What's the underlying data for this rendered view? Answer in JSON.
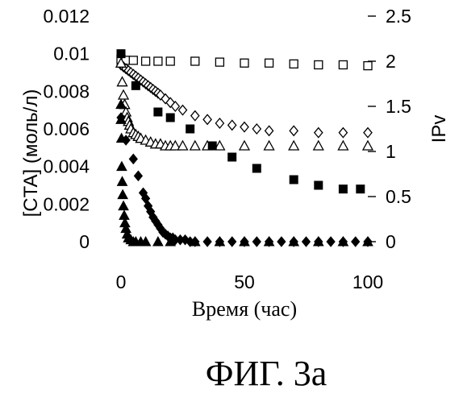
{
  "figure_caption": "ФИГ. 3а",
  "chart_data": {
    "type": "scatter",
    "xlabel": "Время (час)",
    "ylabel": "[CTA] (моль/л)",
    "y2label": "IPv",
    "xlim": [
      0,
      100
    ],
    "ylim": [
      0,
      0.012
    ],
    "y2lim": [
      0,
      2.5
    ],
    "x_ticks": [
      "0",
      "50",
      "100"
    ],
    "y_ticks": [
      "0",
      "0.002",
      "0.004",
      "0.006",
      "0.008",
      "0.01",
      "0.012"
    ],
    "y2_ticks": [
      "0",
      "0.5",
      "1",
      "1.5",
      "2",
      "2.5"
    ],
    "grid": false,
    "series": [
      {
        "marker": "open-square",
        "axis": "right",
        "points": [
          [
            0,
            2.02
          ],
          [
            2,
            2.01
          ],
          [
            5,
            2.01
          ],
          [
            10,
            2.0
          ],
          [
            15,
            2.0
          ],
          [
            20,
            2.0
          ],
          [
            30,
            2.0
          ],
          [
            40,
            1.99
          ],
          [
            50,
            1.98
          ],
          [
            60,
            1.98
          ],
          [
            70,
            1.97
          ],
          [
            80,
            1.96
          ],
          [
            90,
            1.96
          ],
          [
            100,
            1.95
          ]
        ]
      },
      {
        "marker": "open-diamond",
        "axis": "left",
        "points": [
          [
            0,
            0.0094
          ],
          [
            1,
            0.0093
          ],
          [
            2,
            0.0092
          ],
          [
            3,
            0.0091
          ],
          [
            4,
            0.009
          ],
          [
            5,
            0.0089
          ],
          [
            6,
            0.0088
          ],
          [
            7,
            0.0087
          ],
          [
            8,
            0.0086
          ],
          [
            9,
            0.0085
          ],
          [
            10,
            0.0084
          ],
          [
            11,
            0.0083
          ],
          [
            12,
            0.0082
          ],
          [
            13,
            0.0081
          ],
          [
            14,
            0.008
          ],
          [
            15,
            0.0079
          ],
          [
            16,
            0.0078
          ],
          [
            18,
            0.0076
          ],
          [
            20,
            0.0074
          ],
          [
            22,
            0.0072
          ],
          [
            25,
            0.007
          ],
          [
            30,
            0.0067
          ],
          [
            35,
            0.0065
          ],
          [
            40,
            0.0063
          ],
          [
            45,
            0.0062
          ],
          [
            50,
            0.0061
          ],
          [
            55,
            0.006
          ],
          [
            60,
            0.0059
          ],
          [
            70,
            0.0059
          ],
          [
            80,
            0.0058
          ],
          [
            90,
            0.0058
          ],
          [
            100,
            0.0058
          ]
        ]
      },
      {
        "marker": "open-triangle",
        "axis": "left",
        "points": [
          [
            0,
            0.0095
          ],
          [
            0.5,
            0.0085
          ],
          [
            1,
            0.0078
          ],
          [
            1.5,
            0.0073
          ],
          [
            2,
            0.0069
          ],
          [
            2.5,
            0.0066
          ],
          [
            3,
            0.0064
          ],
          [
            3.5,
            0.0062
          ],
          [
            4,
            0.006
          ],
          [
            5,
            0.0058
          ],
          [
            6,
            0.0057
          ],
          [
            7,
            0.0056
          ],
          [
            8,
            0.0055
          ],
          [
            10,
            0.0054
          ],
          [
            12,
            0.0053
          ],
          [
            14,
            0.0052
          ],
          [
            16,
            0.0052
          ],
          [
            18,
            0.0051
          ],
          [
            20,
            0.0051
          ],
          [
            22,
            0.0051
          ],
          [
            25,
            0.0051
          ],
          [
            30,
            0.0051
          ],
          [
            35,
            0.0051
          ],
          [
            40,
            0.0051
          ],
          [
            50,
            0.0051
          ],
          [
            60,
            0.0051
          ],
          [
            70,
            0.0051
          ],
          [
            80,
            0.0051
          ],
          [
            90,
            0.0051
          ],
          [
            100,
            0.0051
          ]
        ]
      },
      {
        "marker": "filled-square",
        "axis": "left",
        "points": [
          [
            0,
            0.01
          ],
          [
            6,
            0.0083
          ],
          [
            15,
            0.0069
          ],
          [
            20,
            0.0066
          ],
          [
            28,
            0.006
          ],
          [
            37,
            0.0051
          ],
          [
            45,
            0.0045
          ],
          [
            55,
            0.0039
          ],
          [
            70,
            0.0033
          ],
          [
            80,
            0.003
          ],
          [
            90,
            0.0028
          ],
          [
            97,
            0.0028
          ]
        ]
      },
      {
        "marker": "filled-diamond",
        "axis": "left",
        "points": [
          [
            0,
            0.0066
          ],
          [
            2,
            0.0054
          ],
          [
            5,
            0.0044
          ],
          [
            7,
            0.0035
          ],
          [
            9,
            0.0026
          ],
          [
            10,
            0.0023
          ],
          [
            11,
            0.0019
          ],
          [
            12,
            0.0016
          ],
          [
            13,
            0.0013
          ],
          [
            14,
            0.0011
          ],
          [
            15,
            0.0009
          ],
          [
            16,
            0.0007
          ],
          [
            17,
            0.0005
          ],
          [
            18,
            0.0004
          ],
          [
            19,
            0.0003
          ],
          [
            20,
            0.0002
          ],
          [
            21,
            0.0002
          ],
          [
            22,
            0.0001
          ],
          [
            24,
            0.0001
          ],
          [
            26,
            0.0001
          ],
          [
            28,
            0.0
          ],
          [
            30,
            0.0
          ],
          [
            35,
            0.0
          ],
          [
            40,
            0.0
          ],
          [
            45,
            0.0
          ],
          [
            50,
            0.0
          ],
          [
            55,
            0.0
          ],
          [
            60,
            0.0
          ],
          [
            65,
            0.0
          ],
          [
            70,
            0.0
          ],
          [
            75,
            0.0
          ],
          [
            80,
            0.0
          ],
          [
            85,
            0.0
          ],
          [
            90,
            0.0
          ],
          [
            95,
            0.0
          ],
          [
            100,
            0.0
          ]
        ]
      },
      {
        "marker": "filled-triangle",
        "axis": "left",
        "points": [
          [
            0,
            0.0073
          ],
          [
            0,
            0.0065
          ],
          [
            0.2,
            0.0055
          ],
          [
            0.3,
            0.004
          ],
          [
            0.5,
            0.0032
          ],
          [
            0.7,
            0.0025
          ],
          [
            1,
            0.0019
          ],
          [
            1.3,
            0.0014
          ],
          [
            1.6,
            0.001
          ],
          [
            2,
            0.0007
          ],
          [
            2.5,
            0.0004
          ],
          [
            3,
            0.0002
          ],
          [
            4,
            0.0001
          ],
          [
            5,
            0.0
          ],
          [
            6,
            0.0
          ],
          [
            8,
            0.0
          ],
          [
            10,
            0.0
          ],
          [
            15,
            0.0
          ],
          [
            20,
            0.0
          ],
          [
            30,
            0.0
          ],
          [
            40,
            0.0
          ],
          [
            50,
            0.0
          ],
          [
            60,
            0.0
          ],
          [
            70,
            0.0
          ],
          [
            80,
            0.0
          ],
          [
            90,
            0.0
          ],
          [
            100,
            0.0
          ]
        ]
      }
    ]
  }
}
